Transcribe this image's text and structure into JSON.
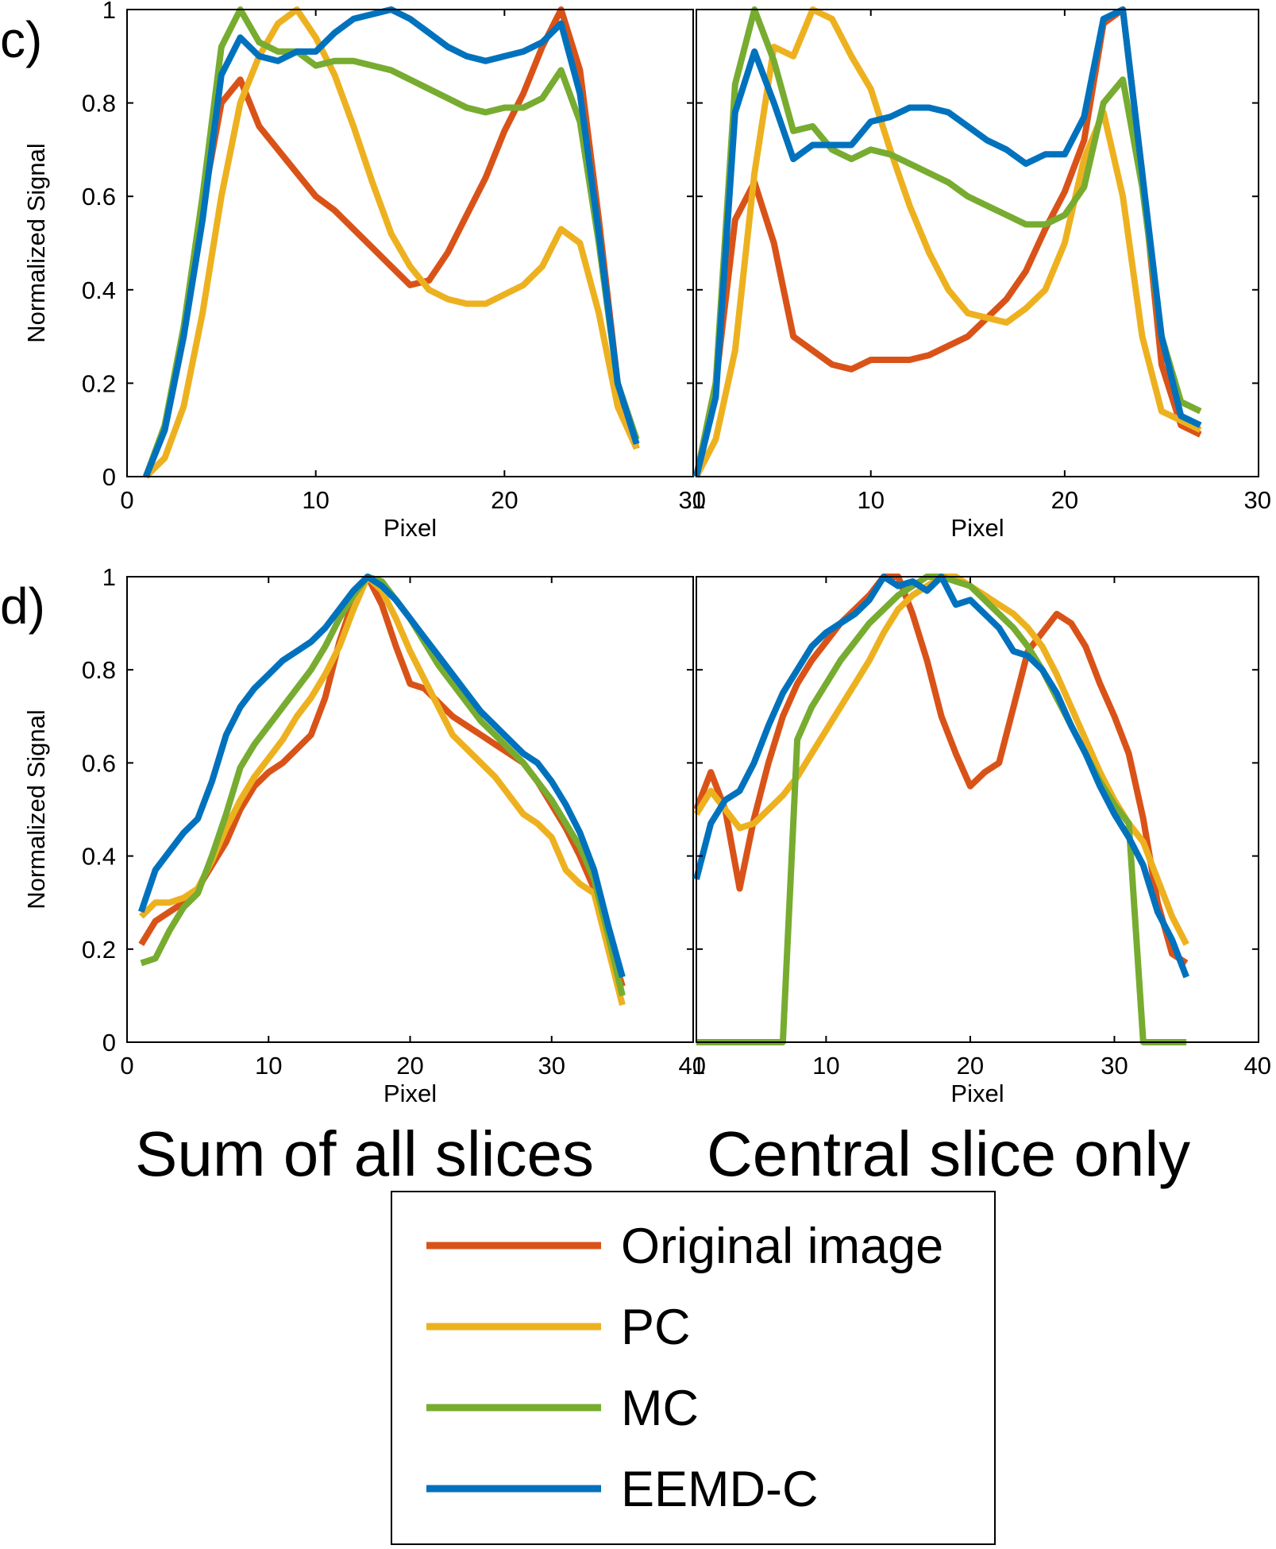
{
  "colors": {
    "Original image": "#d95319",
    "PC": "#edb120",
    "MC": "#77ac30",
    "EEMD-C": "#0072bd"
  },
  "row_labels": [
    "c)",
    "d)"
  ],
  "column_captions": [
    "Sum of all slices",
    "Central slice only"
  ],
  "legend": {
    "entries": [
      "Original image",
      "PC",
      "MC",
      "EEMD-C"
    ]
  },
  "chart_data": [
    {
      "id": "c-sum",
      "type": "line",
      "panel": "c)",
      "caption": "Sum of all slices",
      "xlabel": "Pixel",
      "ylabel": "Normalized Signal",
      "xlim": [
        0,
        30
      ],
      "ylim": [
        0,
        1
      ],
      "xticks": [
        0,
        10,
        20,
        30
      ],
      "xtick_labels": [
        "0",
        "10",
        "20",
        "30"
      ],
      "yticks": [
        0,
        0.2,
        0.4,
        0.6,
        0.8,
        1
      ],
      "ytick_labels": [
        "0",
        "0.2",
        "0.4",
        "0.6",
        "0.8",
        "1"
      ],
      "x": [
        1,
        2,
        3,
        4,
        5,
        6,
        7,
        8,
        9,
        10,
        11,
        12,
        13,
        14,
        15,
        16,
        17,
        18,
        19,
        20,
        21,
        22,
        23,
        24,
        25,
        26,
        27
      ],
      "series": [
        {
          "name": "Original image",
          "values": [
            0,
            0.1,
            0.3,
            0.58,
            0.8,
            0.85,
            0.75,
            0.7,
            0.65,
            0.6,
            0.57,
            0.53,
            0.49,
            0.45,
            0.41,
            0.42,
            0.48,
            0.56,
            0.64,
            0.74,
            0.82,
            0.92,
            1.0,
            0.87,
            0.55,
            0.2,
            0.06
          ]
        },
        {
          "name": "PC",
          "values": [
            0,
            0.04,
            0.15,
            0.35,
            0.6,
            0.8,
            0.9,
            0.97,
            1.0,
            0.94,
            0.86,
            0.75,
            0.63,
            0.52,
            0.45,
            0.4,
            0.38,
            0.37,
            0.37,
            0.39,
            0.41,
            0.45,
            0.53,
            0.5,
            0.35,
            0.15,
            0.06
          ]
        },
        {
          "name": "MC",
          "values": [
            0,
            0.11,
            0.32,
            0.6,
            0.92,
            1.0,
            0.93,
            0.91,
            0.91,
            0.88,
            0.89,
            0.89,
            0.88,
            0.87,
            0.85,
            0.83,
            0.81,
            0.79,
            0.78,
            0.79,
            0.79,
            0.81,
            0.87,
            0.76,
            0.5,
            0.2,
            0.08
          ]
        },
        {
          "name": "EEMD-C",
          "values": [
            0,
            0.1,
            0.3,
            0.55,
            0.86,
            0.94,
            0.9,
            0.89,
            0.91,
            0.91,
            0.95,
            0.98,
            0.99,
            1.0,
            0.98,
            0.95,
            0.92,
            0.9,
            0.89,
            0.9,
            0.91,
            0.93,
            0.97,
            0.82,
            0.52,
            0.2,
            0.07
          ]
        }
      ]
    },
    {
      "id": "c-central",
      "type": "line",
      "panel": "c)",
      "caption": "Central slice only",
      "xlabel": "Pixel",
      "ylabel": "",
      "xlim": [
        1,
        30
      ],
      "ylim": [
        0,
        1
      ],
      "xticks": [
        1,
        10,
        20,
        30
      ],
      "xtick_labels": [
        "1",
        "10",
        "20",
        "30"
      ],
      "yticks": [],
      "ytick_labels": [],
      "x": [
        1,
        2,
        3,
        4,
        5,
        6,
        7,
        8,
        9,
        10,
        11,
        12,
        13,
        14,
        15,
        16,
        17,
        18,
        19,
        20,
        21,
        22,
        23,
        24,
        25,
        26,
        27
      ],
      "series": [
        {
          "name": "Original image",
          "values": [
            0,
            0.2,
            0.55,
            0.63,
            0.5,
            0.3,
            0.27,
            0.24,
            0.23,
            0.25,
            0.25,
            0.25,
            0.26,
            0.28,
            0.3,
            0.34,
            0.38,
            0.44,
            0.53,
            0.61,
            0.72,
            0.97,
            1.0,
            0.65,
            0.24,
            0.11,
            0.09
          ]
        },
        {
          "name": "PC",
          "values": [
            0,
            0.08,
            0.27,
            0.65,
            0.92,
            0.9,
            1.0,
            0.98,
            0.9,
            0.83,
            0.7,
            0.58,
            0.48,
            0.4,
            0.35,
            0.34,
            0.33,
            0.36,
            0.4,
            0.5,
            0.68,
            0.78,
            0.6,
            0.3,
            0.14,
            0.12,
            0.1
          ]
        },
        {
          "name": "MC",
          "values": [
            0,
            0.2,
            0.84,
            1.0,
            0.89,
            0.74,
            0.75,
            0.7,
            0.68,
            0.7,
            0.69,
            0.67,
            0.65,
            0.63,
            0.6,
            0.58,
            0.56,
            0.54,
            0.54,
            0.56,
            0.62,
            0.8,
            0.85,
            0.62,
            0.3,
            0.16,
            0.14
          ]
        },
        {
          "name": "EEMD-C",
          "values": [
            0,
            0.17,
            0.78,
            0.91,
            0.8,
            0.68,
            0.71,
            0.71,
            0.71,
            0.76,
            0.77,
            0.79,
            0.79,
            0.78,
            0.75,
            0.72,
            0.7,
            0.67,
            0.69,
            0.69,
            0.77,
            0.98,
            1.0,
            0.65,
            0.3,
            0.13,
            0.11
          ]
        }
      ]
    },
    {
      "id": "d-sum",
      "type": "line",
      "panel": "d)",
      "caption": "Sum of all slices",
      "xlabel": "Pixel",
      "ylabel": "Normalized Signal",
      "xlim": [
        0,
        40
      ],
      "ylim": [
        0,
        1
      ],
      "xticks": [
        0,
        10,
        20,
        30,
        40
      ],
      "xtick_labels": [
        "0",
        "10",
        "20",
        "30",
        "40"
      ],
      "yticks": [
        0,
        0.2,
        0.4,
        0.6,
        0.8,
        1
      ],
      "ytick_labels": [
        "0",
        "0.2",
        "0.4",
        "0.6",
        "0.8",
        "1"
      ],
      "x": [
        1,
        2,
        3,
        4,
        5,
        6,
        7,
        8,
        9,
        10,
        11,
        12,
        13,
        14,
        15,
        16,
        17,
        18,
        19,
        20,
        21,
        22,
        23,
        24,
        25,
        26,
        27,
        28,
        29,
        30,
        31,
        32,
        33,
        34,
        35
      ],
      "series": [
        {
          "name": "Original image",
          "values": [
            0.21,
            0.26,
            0.28,
            0.3,
            0.33,
            0.38,
            0.43,
            0.5,
            0.55,
            0.58,
            0.6,
            0.63,
            0.66,
            0.74,
            0.86,
            0.95,
            1.0,
            0.94,
            0.85,
            0.77,
            0.76,
            0.73,
            0.7,
            0.68,
            0.66,
            0.64,
            0.62,
            0.6,
            0.56,
            0.51,
            0.46,
            0.4,
            0.33,
            0.22,
            0.12
          ]
        },
        {
          "name": "PC",
          "values": [
            0.27,
            0.3,
            0.3,
            0.31,
            0.33,
            0.39,
            0.46,
            0.52,
            0.57,
            0.61,
            0.65,
            0.7,
            0.74,
            0.79,
            0.85,
            0.93,
            1.0,
            0.97,
            0.91,
            0.84,
            0.78,
            0.72,
            0.66,
            0.63,
            0.6,
            0.57,
            0.53,
            0.49,
            0.47,
            0.44,
            0.37,
            0.34,
            0.32,
            0.2,
            0.08
          ]
        },
        {
          "name": "MC",
          "values": [
            0.17,
            0.18,
            0.24,
            0.29,
            0.32,
            0.4,
            0.49,
            0.59,
            0.64,
            0.68,
            0.72,
            0.76,
            0.8,
            0.85,
            0.91,
            0.96,
            1.0,
            0.99,
            0.95,
            0.91,
            0.86,
            0.81,
            0.77,
            0.73,
            0.69,
            0.66,
            0.63,
            0.6,
            0.56,
            0.52,
            0.47,
            0.42,
            0.35,
            0.23,
            0.1
          ]
        },
        {
          "name": "EEMD-C",
          "values": [
            0.28,
            0.37,
            0.41,
            0.45,
            0.48,
            0.56,
            0.66,
            0.72,
            0.76,
            0.79,
            0.82,
            0.84,
            0.86,
            0.89,
            0.93,
            0.97,
            1.0,
            0.98,
            0.95,
            0.91,
            0.87,
            0.83,
            0.79,
            0.75,
            0.71,
            0.68,
            0.65,
            0.62,
            0.6,
            0.56,
            0.51,
            0.45,
            0.37,
            0.25,
            0.14
          ]
        }
      ]
    },
    {
      "id": "d-central",
      "type": "line",
      "panel": "d)",
      "caption": "Central slice only",
      "xlabel": "Pixel",
      "ylabel": "",
      "xlim": [
        1,
        40
      ],
      "ylim": [
        0,
        1
      ],
      "xticks": [
        1,
        10,
        20,
        30,
        40
      ],
      "xtick_labels": [
        "1",
        "10",
        "20",
        "30",
        "40"
      ],
      "yticks": [],
      "ytick_labels": [],
      "x": [
        1,
        2,
        3,
        4,
        5,
        6,
        7,
        8,
        9,
        10,
        11,
        12,
        13,
        14,
        15,
        16,
        17,
        18,
        19,
        20,
        21,
        22,
        23,
        24,
        25,
        26,
        27,
        28,
        29,
        30,
        31,
        32,
        33,
        34,
        35
      ],
      "series": [
        {
          "name": "Original image",
          "values": [
            0.5,
            0.58,
            0.5,
            0.33,
            0.48,
            0.6,
            0.7,
            0.77,
            0.82,
            0.86,
            0.9,
            0.93,
            0.96,
            1.0,
            1.0,
            0.92,
            0.82,
            0.7,
            0.62,
            0.55,
            0.58,
            0.6,
            0.72,
            0.84,
            0.88,
            0.92,
            0.9,
            0.85,
            0.77,
            0.7,
            0.62,
            0.48,
            0.3,
            0.19,
            0.17
          ]
        },
        {
          "name": "PC",
          "values": [
            0.49,
            0.54,
            0.5,
            0.46,
            0.47,
            0.5,
            0.53,
            0.57,
            0.62,
            0.67,
            0.72,
            0.77,
            0.82,
            0.88,
            0.93,
            0.96,
            0.98,
            1.0,
            1.0,
            0.98,
            0.96,
            0.94,
            0.92,
            0.89,
            0.85,
            0.79,
            0.72,
            0.65,
            0.58,
            0.52,
            0.47,
            0.43,
            0.35,
            0.27,
            0.21
          ]
        },
        {
          "name": "MC",
          "values": [
            0,
            0,
            0,
            0,
            0,
            0,
            0,
            0.65,
            0.72,
            0.77,
            0.82,
            0.86,
            0.9,
            0.93,
            0.96,
            0.98,
            1.0,
            1.0,
            0.99,
            0.98,
            0.95,
            0.92,
            0.89,
            0.85,
            0.8,
            0.74,
            0.68,
            0.62,
            0.56,
            0.51,
            0.47,
            0.0,
            0.0,
            0.0,
            0.0
          ]
        },
        {
          "name": "EEMD-C",
          "values": [
            0.35,
            0.47,
            0.52,
            0.54,
            0.6,
            0.68,
            0.75,
            0.8,
            0.85,
            0.88,
            0.9,
            0.92,
            0.95,
            1.0,
            0.98,
            0.99,
            0.97,
            1.0,
            0.94,
            0.95,
            0.92,
            0.89,
            0.84,
            0.83,
            0.8,
            0.75,
            0.68,
            0.62,
            0.55,
            0.49,
            0.44,
            0.38,
            0.28,
            0.22,
            0.14
          ]
        }
      ]
    }
  ]
}
